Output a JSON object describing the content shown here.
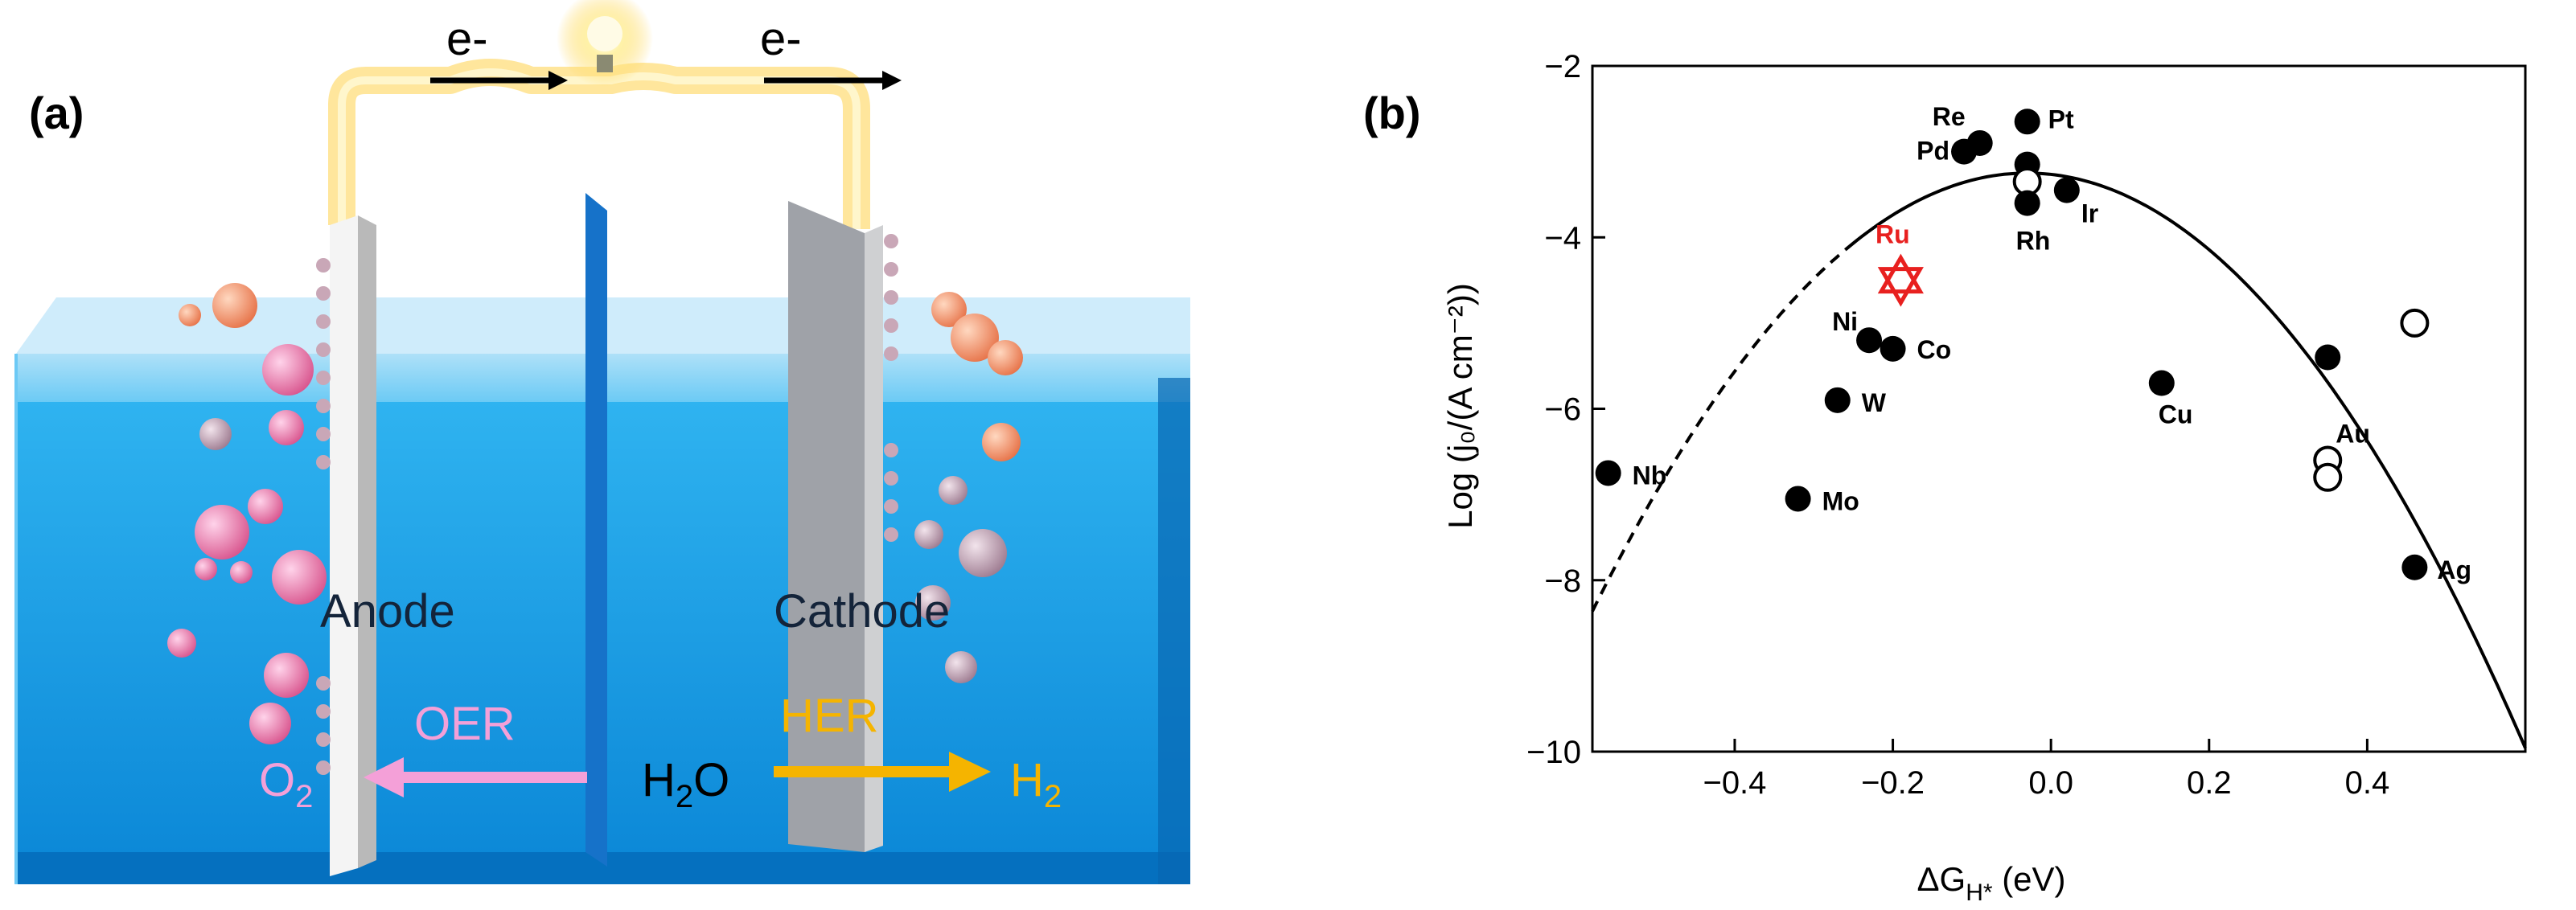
{
  "panel_a": {
    "label": "(a)",
    "electron_left": "e-",
    "electron_right": "e-",
    "anode_label": "Anode",
    "cathode_label": "Cathode",
    "oer_label": "OER",
    "her_label": "HER",
    "o2_main": "O",
    "o2_sub": "2",
    "h2o_main": "H",
    "h2o_sub": "2",
    "h2o_end": "O",
    "h2_main": "H",
    "h2_sub": "2",
    "colors": {
      "water": "#1a9fe8",
      "oer": "#f4a0d8",
      "her": "#f5b400",
      "glow": "#ffd24a"
    }
  },
  "chart_data": {
    "type": "scatter",
    "panel_label": "(b)",
    "xlabel_main": "ΔG",
    "xlabel_sub": "H*",
    "xlabel_unit": " (eV)",
    "ylabel": "Log (j₀/(A cm⁻²))",
    "xlim": [
      -0.58,
      0.6
    ],
    "ylim": [
      -10,
      -2
    ],
    "xticks": [
      -0.4,
      -0.2,
      0.0,
      0.2,
      0.4
    ],
    "xtick_labels": [
      "−0.4",
      "−0.2",
      "0.0",
      "0.2",
      "0.4"
    ],
    "yticks": [
      -10,
      -8,
      -6,
      -4,
      -2
    ],
    "ytick_labels": [
      "−10",
      "−8",
      "−6",
      "−4",
      "−2"
    ],
    "volcano_peak": {
      "x": -0.03,
      "y": -3.25
    },
    "volcano_slope": 16.9,
    "points": [
      {
        "label": "Nb",
        "x": -0.56,
        "y": -6.75,
        "filled": true
      },
      {
        "label": "Mo",
        "x": -0.32,
        "y": -7.05,
        "filled": true
      },
      {
        "label": "W",
        "x": -0.27,
        "y": -5.9,
        "filled": true
      },
      {
        "label": "Ni",
        "x": -0.23,
        "y": -5.2,
        "filled": true
      },
      {
        "label": "Co",
        "x": -0.2,
        "y": -5.3,
        "filled": true
      },
      {
        "label": "Pd",
        "x": -0.11,
        "y": -3.0,
        "filled": true
      },
      {
        "label": "Re",
        "x": -0.09,
        "y": -2.9,
        "filled": true
      },
      {
        "label": "Pt",
        "x": -0.03,
        "y": -2.65,
        "filled": true
      },
      {
        "label": "",
        "x": -0.03,
        "y": -3.15,
        "filled": true
      },
      {
        "label": "",
        "x": -0.03,
        "y": -3.35,
        "filled": false
      },
      {
        "label": "Rh",
        "x": -0.03,
        "y": -3.6,
        "filled": true
      },
      {
        "label": "Ir",
        "x": 0.02,
        "y": -3.45,
        "filled": true
      },
      {
        "label": "Cu",
        "x": 0.14,
        "y": -5.7,
        "filled": true
      },
      {
        "label": "",
        "x": 0.35,
        "y": -5.4,
        "filled": true
      },
      {
        "label": "",
        "x": 0.46,
        "y": -5.0,
        "filled": false
      },
      {
        "label": "Au",
        "x": 0.35,
        "y": -6.6,
        "filled": false
      },
      {
        "label": "",
        "x": 0.35,
        "y": -6.8,
        "filled": false
      },
      {
        "label": "Ag",
        "x": 0.46,
        "y": -7.85,
        "filled": true
      }
    ],
    "highlight": {
      "label": "Ru",
      "x": -0.19,
      "y": -4.5,
      "color": "#e8201f"
    }
  }
}
